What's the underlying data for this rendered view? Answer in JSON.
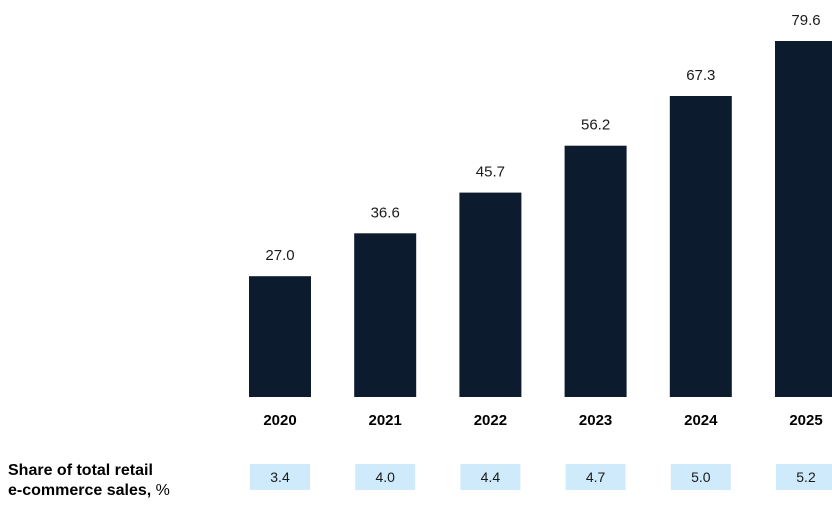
{
  "chart_data": {
    "type": "bar",
    "categories": [
      "2020",
      "2021",
      "2022",
      "2023",
      "2024",
      "2025"
    ],
    "values": [
      27.0,
      36.6,
      45.7,
      56.2,
      67.3,
      79.6
    ],
    "value_labels": [
      "27.0",
      "36.6",
      "45.7",
      "56.2",
      "67.3",
      "79.6"
    ],
    "bar_color": "#0d1b2e",
    "ylim": [
      0,
      79.6
    ],
    "grid": false,
    "legend": "none",
    "share_row": {
      "label_line1": "Share of total retail",
      "label_line2": "e-commerce sales,",
      "unit": "%",
      "values": [
        "3.4",
        "4.0",
        "4.4",
        "4.7",
        "5.0",
        "5.2"
      ],
      "box_color": "#cfeafa"
    }
  }
}
